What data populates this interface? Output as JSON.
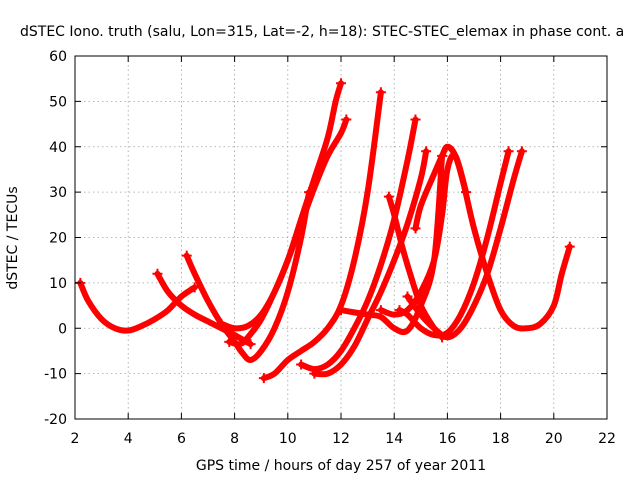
{
  "chart_data": {
    "type": "scatter",
    "title": "dSTEC Iono. truth (salu, Lon=315, Lat=-2, h=18): STEC-STEC_elemax in phase cont. a",
    "xlabel": "GPS time / hours of day 257 of year 2011",
    "ylabel": "dSTEC  / TECUs",
    "xlim": [
      2,
      22
    ],
    "ylim": [
      -20,
      60
    ],
    "x_ticks": [
      "2",
      "4",
      "6",
      "8",
      "10",
      "12",
      "14",
      "16",
      "18",
      "20",
      "22"
    ],
    "y_ticks": [
      "-20",
      "-10",
      "0",
      "10",
      "20",
      "30",
      "40",
      "50",
      "60"
    ],
    "grid": true,
    "marker": "+",
    "series_color": "#ff0000",
    "series": [
      {
        "x": [
          2.2,
          2.5,
          3.0,
          3.5,
          4.0,
          4.5,
          5.0,
          5.5,
          6.0,
          6.5
        ],
        "y": [
          10,
          6,
          2,
          0,
          -0.5,
          0.5,
          2,
          4,
          7,
          9
        ]
      },
      {
        "x": [
          5.1,
          5.5,
          6.0,
          6.5,
          7.0,
          7.5,
          8.0,
          8.3,
          8.6
        ],
        "y": [
          12,
          8,
          5,
          3,
          1.5,
          0,
          -1.5,
          -2.5,
          -3.5
        ]
      },
      {
        "x": [
          6.2,
          6.5,
          7.0,
          7.5,
          8.0,
          8.3,
          8.6,
          9.0,
          9.5,
          10.0,
          10.5,
          10.8
        ],
        "y": [
          16,
          12,
          6,
          1,
          -3,
          -5.5,
          -7,
          -5,
          0,
          8,
          20,
          30
        ]
      },
      {
        "x": [
          7.5,
          8.0,
          8.5,
          9.0,
          9.5,
          10.0,
          10.5,
          11.0,
          11.5,
          11.8,
          12.0
        ],
        "y": [
          1,
          0,
          0.5,
          3,
          8,
          15,
          24,
          33,
          42,
          50,
          54
        ]
      },
      {
        "x": [
          7.8,
          8.2,
          8.5,
          9.0,
          9.5,
          10.0,
          10.5,
          11.0,
          11.5,
          12.0,
          12.2
        ],
        "y": [
          -3,
          -3.5,
          -2,
          2,
          8,
          15,
          23,
          31,
          38,
          43,
          46
        ]
      },
      {
        "x": [
          9.1,
          9.5,
          10.0,
          10.5,
          11.0,
          11.5,
          12.0,
          12.5,
          13.0,
          13.5
        ],
        "y": [
          -11,
          -10,
          -7,
          -5,
          -3,
          0,
          5,
          15,
          30,
          52
        ]
      },
      {
        "x": [
          10.5,
          11.0,
          11.5,
          12.0,
          12.5,
          13.0,
          13.5,
          14.0,
          14.5,
          14.8
        ],
        "y": [
          -8,
          -9,
          -8,
          -5,
          0,
          6,
          14,
          24,
          37,
          46
        ]
      },
      {
        "x": [
          11.0,
          11.5,
          12.0,
          12.5,
          13.0,
          13.5,
          14.0,
          14.5,
          15.0,
          15.2
        ],
        "y": [
          -10,
          -10,
          -8,
          -4,
          2,
          8,
          15,
          23,
          33,
          39
        ]
      },
      {
        "x": [
          12.0,
          12.5,
          13.0,
          13.5,
          14.0,
          14.5,
          15.0,
          15.5,
          15.8
        ],
        "y": [
          4,
          3.5,
          3,
          2.5,
          0,
          -0.5,
          5,
          15,
          38
        ]
      },
      {
        "x": [
          13.8,
          14.0,
          14.3,
          14.6,
          15.0,
          15.5,
          15.8
        ],
        "y": [
          29,
          25,
          18,
          12,
          5,
          0,
          -2
        ]
      },
      {
        "x": [
          14.2,
          14.5,
          15.0,
          15.5,
          16.0,
          16.5,
          17.0,
          17.5,
          18.0,
          18.3
        ],
        "y": [
          4,
          3,
          0,
          -1.5,
          -1,
          3,
          10,
          20,
          32,
          39
        ]
      },
      {
        "x": [
          14.5,
          15.0,
          15.5,
          16.0,
          16.5,
          17.0,
          17.5,
          18.0,
          18.5,
          18.8
        ],
        "y": [
          7,
          3,
          0,
          -2,
          0,
          5,
          12,
          22,
          33,
          39
        ]
      },
      {
        "x": [
          14.8,
          15.0,
          15.5,
          15.8,
          16.0,
          16.3,
          16.6,
          17.0,
          17.5,
          18.0,
          18.5,
          19.0,
          19.5,
          20.0,
          20.3,
          20.6
        ],
        "y": [
          22,
          27,
          34,
          38,
          40,
          38,
          32,
          22,
          12,
          4,
          0.5,
          0,
          1,
          5,
          12,
          18
        ]
      },
      {
        "x": [
          13.5,
          14.0,
          14.5,
          15.0,
          15.5,
          15.8,
          16.0,
          16.3,
          16.7
        ],
        "y": [
          4,
          3,
          4,
          8,
          15,
          25,
          35,
          38,
          30
        ]
      }
    ]
  }
}
